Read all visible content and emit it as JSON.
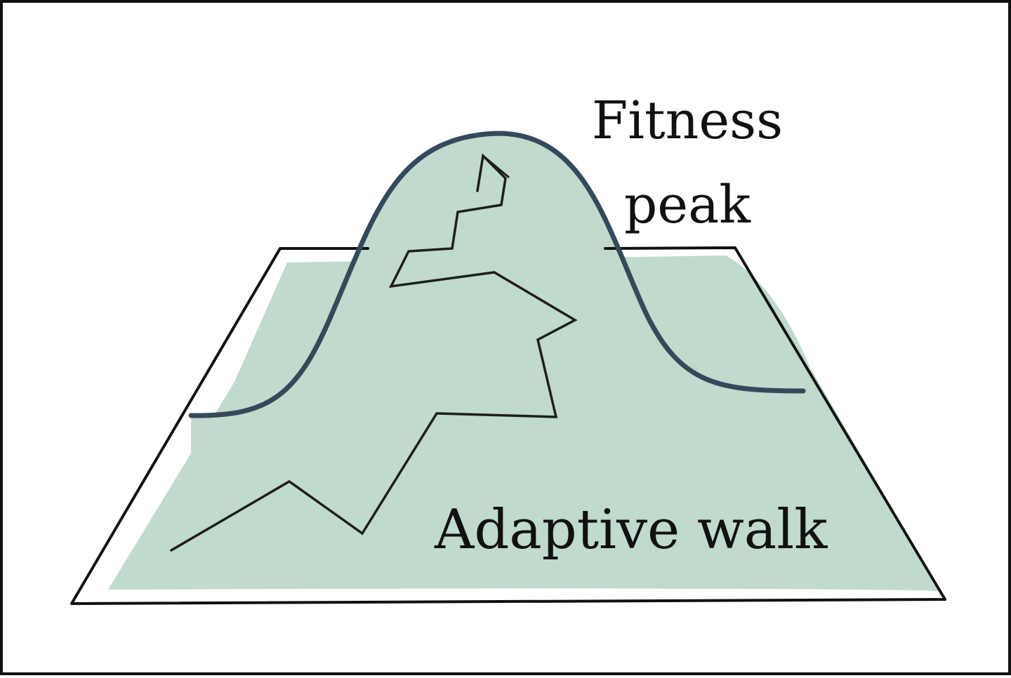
{
  "diagram": {
    "labels": {
      "peak_line1": "Fitness",
      "peak_line2": "peak",
      "walk": "Adaptive walk"
    },
    "colors": {
      "landscape_fill": "#c0dacd",
      "peak_outline": "#34495a",
      "walk_stroke": "#1e1e1e",
      "plane_outline": "#111111",
      "background": "#ffffff"
    }
  }
}
